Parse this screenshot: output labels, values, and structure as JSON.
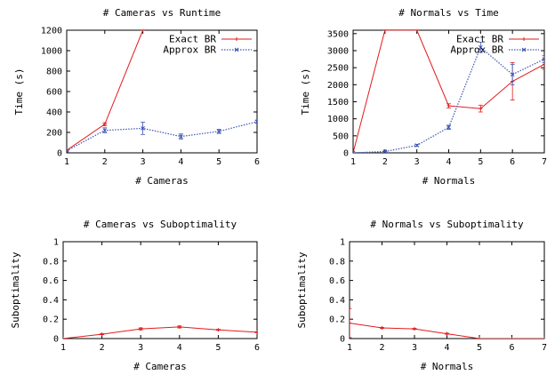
{
  "chart_data": [
    {
      "type": "line",
      "title": "# Cameras vs Runtime",
      "xlabel": "# Cameras",
      "ylabel": "Time (s)",
      "xlim": [
        1,
        6
      ],
      "ylim": [
        0,
        1200
      ],
      "xticks": [
        1,
        2,
        3,
        4,
        5,
        6
      ],
      "yticks": [
        0,
        200,
        400,
        600,
        800,
        1000,
        1200
      ],
      "legend_position": "top-right",
      "series": [
        {
          "name": "Exact BR",
          "color": "#e41a1c",
          "dash": false,
          "marker": "plus",
          "x": [
            1,
            2,
            3
          ],
          "y": [
            25,
            280,
            1200
          ],
          "err": [
            8,
            15,
            0
          ]
        },
        {
          "name": "Approx BR",
          "color": "#3a55b4",
          "dash": true,
          "marker": "x",
          "x": [
            1,
            2,
            3,
            4,
            5,
            6
          ],
          "y": [
            20,
            220,
            240,
            160,
            210,
            305
          ],
          "err": [
            6,
            25,
            60,
            25,
            20,
            15
          ]
        }
      ]
    },
    {
      "type": "line",
      "title": "# Normals vs Time",
      "xlabel": "# Normals",
      "ylabel": "Time (s)",
      "xlim": [
        1,
        7
      ],
      "ylim": [
        0,
        3600
      ],
      "xticks": [
        1,
        2,
        3,
        4,
        5,
        6,
        7
      ],
      "yticks": [
        0,
        500,
        1000,
        1500,
        2000,
        2500,
        3000,
        3500
      ],
      "legend_position": "top-right",
      "series": [
        {
          "name": "Exact BR",
          "color": "#e41a1c",
          "dash": false,
          "marker": "plus",
          "x": [
            1,
            2,
            3,
            4,
            5,
            6,
            7
          ],
          "y": [
            0,
            3600,
            3600,
            1380,
            1300,
            2100,
            2600
          ],
          "err": [
            0,
            0,
            0,
            60,
            100,
            550,
            150
          ]
        },
        {
          "name": "Approx BR",
          "color": "#3a55b4",
          "dash": true,
          "marker": "x",
          "x": [
            1,
            2,
            3,
            4,
            5,
            6,
            7
          ],
          "y": [
            0,
            40,
            220,
            750,
            3100,
            2300,
            2750
          ],
          "err": [
            0,
            10,
            30,
            60,
            150,
            300,
            100
          ]
        }
      ]
    },
    {
      "type": "line",
      "title": "# Cameras vs Suboptimality",
      "xlabel": "# Cameras",
      "ylabel": "Suboptimality",
      "xlim": [
        1,
        6
      ],
      "ylim": [
        0,
        1
      ],
      "xticks": [
        1,
        2,
        3,
        4,
        5,
        6
      ],
      "yticks": [
        0,
        0.2,
        0.4,
        0.6,
        0.8,
        1
      ],
      "series": [
        {
          "name": "",
          "color": "#e41a1c",
          "dash": false,
          "marker": "plus",
          "x": [
            1,
            2,
            3,
            4,
            5,
            6
          ],
          "y": [
            0.0,
            0.045,
            0.1,
            0.12,
            0.09,
            0.065
          ],
          "err": [
            0,
            0.005,
            0.01,
            0.01,
            0.005,
            0.005
          ]
        }
      ]
    },
    {
      "type": "line",
      "title": "# Normals vs Suboptimality",
      "xlabel": "# Normals",
      "ylabel": "Suboptimality",
      "xlim": [
        1,
        7
      ],
      "ylim": [
        0,
        1
      ],
      "xticks": [
        1,
        2,
        3,
        4,
        5,
        6,
        7
      ],
      "yticks": [
        0,
        0.2,
        0.4,
        0.6,
        0.8,
        1
      ],
      "series": [
        {
          "name": "",
          "color": "#e41a1c",
          "dash": false,
          "marker": "plus",
          "x": [
            1,
            2,
            3,
            4,
            5,
            6,
            7
          ],
          "y": [
            0.16,
            0.11,
            0.1,
            0.05,
            0.0,
            0.0,
            0.0
          ],
          "err": [
            0.15,
            0.005,
            0.005,
            0.005,
            0,
            0,
            0
          ]
        }
      ]
    }
  ]
}
